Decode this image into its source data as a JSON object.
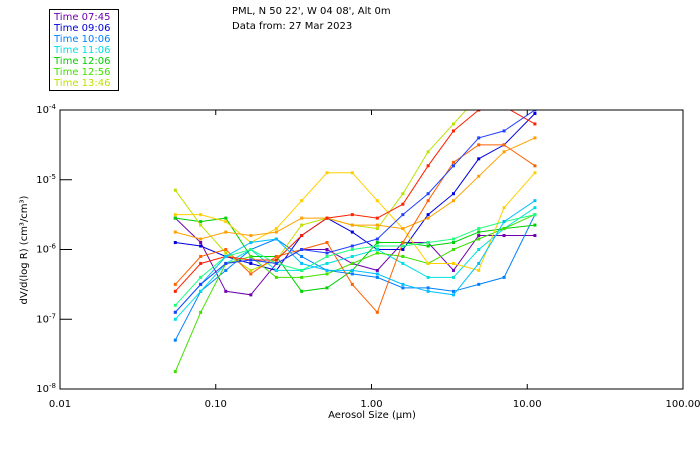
{
  "header": {
    "location": "PML, N 50 22', W 04 08', Alt 0m",
    "date": "Data from: 27 Mar 2023"
  },
  "legend": [
    {
      "label": "Time 07:45",
      "color": "#7000b0"
    },
    {
      "label": "Time 09:06",
      "color": "#0000e0"
    },
    {
      "label": "Time 10:06",
      "color": "#0080ff"
    },
    {
      "label": "Time 11:06",
      "color": "#00e0e0"
    },
    {
      "label": "Time 12:06",
      "color": "#00d000"
    },
    {
      "label": "Time 12:56",
      "color": "#40e000"
    },
    {
      "label": "Time 13:46",
      "color": "#c0e000"
    }
  ],
  "chart_data": {
    "type": "line",
    "xscale": "log",
    "yscale": "log",
    "xlabel": "Aerosol Size (μm)",
    "ylabel": "dV/d(log R) (cm³/cm³)",
    "xlim": [
      0.01,
      100
    ],
    "ylim": [
      1e-08,
      0.0001
    ],
    "x_ticks": [
      {
        "value": 0.01,
        "label": "0.01"
      },
      {
        "value": 0.1,
        "label": "0.10"
      },
      {
        "value": 1,
        "label": "1.00"
      },
      {
        "value": 10,
        "label": "10.00"
      },
      {
        "value": 100,
        "label": "100.00"
      }
    ],
    "y_ticks": [
      {
        "value": 0.0001,
        "base": "10",
        "exp": "-4"
      },
      {
        "value": 1e-05,
        "base": "10",
        "exp": "-5"
      },
      {
        "value": 1e-06,
        "base": "10",
        "exp": "-6"
      },
      {
        "value": 1e-07,
        "base": "10",
        "exp": "-7"
      },
      {
        "value": 1e-08,
        "base": "10",
        "exp": "-8"
      }
    ],
    "x": [
      0.055,
      0.08,
      0.116,
      0.168,
      0.245,
      0.356,
      0.518,
      0.753,
      1.09,
      1.59,
      2.31,
      3.36,
      4.88,
      7.1,
      11.2
    ],
    "series_note": "y values given as log10(dV/dlogR)",
    "series": [
      {
        "name": "Time 07:45",
        "color": "#7000b0",
        "log10_y": [
          -5.55,
          -5.9,
          -6.6,
          -6.65,
          -6.2,
          -6.0,
          -6.0,
          -6.2,
          -6.3,
          -5.9,
          -5.9,
          -6.3,
          -5.8,
          -5.8,
          -5.8
        ]
      },
      {
        "name": "Time 09:06",
        "color": "#0000e0",
        "log10_y": [
          -5.9,
          -5.95,
          -6.1,
          -6.2,
          -6.3,
          -5.8,
          -5.55,
          -5.75,
          -6.0,
          -6.0,
          -5.5,
          -5.2,
          -4.7,
          -4.5,
          -4.05
        ]
      },
      {
        "name": "Time 10:06",
        "color": "#0080ff",
        "log10_y": [
          -7.3,
          -6.6,
          -6.3,
          -6.0,
          -5.85,
          -6.1,
          -6.3,
          -6.35,
          -6.4,
          -6.55,
          -6.55,
          -6.6,
          -6.5,
          -6.4,
          -5.5
        ]
      },
      {
        "name": "Time 11:06",
        "color": "#00e0e0",
        "log10_y": [
          -7.0,
          -6.6,
          -6.2,
          -6.0,
          -6.3,
          -6.3,
          -6.2,
          -6.1,
          -6.0,
          -6.2,
          -6.4,
          -6.4,
          -6.0,
          -5.7,
          -5.4
        ]
      },
      {
        "name": "Time 12:06",
        "color": "#00d000",
        "log10_y": [
          -5.55,
          -5.6,
          -5.55,
          -6.1,
          -6.1,
          -6.6,
          -6.55,
          -6.3,
          -5.9,
          -5.9,
          -5.95,
          -5.9,
          -5.75,
          -5.7,
          -5.65
        ]
      },
      {
        "name": "Time 12:56",
        "color": "#40e000",
        "log10_y": [
          -7.75,
          -6.9,
          -6.2,
          -6.1,
          -6.4,
          -6.4,
          -6.35,
          -6.2,
          -6.05,
          -6.1,
          -6.2,
          -6.0,
          -5.85,
          -5.7,
          -5.5
        ]
      },
      {
        "name": "Time 13:46",
        "color": "#c0e000",
        "log10_y": [
          -5.15,
          -5.65,
          -6.05,
          -6.3,
          -6.15,
          -5.65,
          -5.55,
          -5.65,
          -5.7,
          -5.2,
          -4.6,
          -4.2,
          -3.8,
          -3.7,
          -3.6
        ]
      },
      {
        "name": "",
        "color": "#ffd000",
        "log10_y": [
          -5.5,
          -5.5,
          -5.6,
          -5.9,
          -5.7,
          -5.3,
          -4.9,
          -4.9,
          -5.3,
          -5.7,
          -6.2,
          -6.2,
          -6.3,
          -5.4,
          -4.9
        ]
      },
      {
        "name": "",
        "color": "#ffa000",
        "log10_y": [
          -5.75,
          -5.85,
          -5.75,
          -5.8,
          -5.75,
          -5.55,
          -5.55,
          -5.65,
          -5.65,
          -5.7,
          -5.55,
          -5.3,
          -4.95,
          -4.6,
          -4.4
        ]
      },
      {
        "name": "",
        "color": "#ff6000",
        "log10_y": [
          -6.5,
          -6.1,
          -6.0,
          -6.35,
          -6.1,
          -6.0,
          -5.9,
          -6.5,
          -6.9,
          -5.9,
          -5.3,
          -4.75,
          -4.5,
          -4.5,
          -4.8
        ]
      },
      {
        "name": "",
        "color": "#ff2000",
        "log10_y": [
          -6.6,
          -6.2,
          -6.1,
          -6.15,
          -6.15,
          -5.8,
          -5.55,
          -5.5,
          -5.55,
          -5.35,
          -4.8,
          -4.3,
          -4.0,
          -3.95,
          -4.2
        ]
      },
      {
        "name": "",
        "color": "#20ff80",
        "log10_y": [
          -6.8,
          -6.4,
          -6.1,
          -6.0,
          -6.2,
          -6.3,
          -6.1,
          -6.0,
          -5.95,
          -5.95,
          -5.9,
          -5.85,
          -5.7,
          -5.6,
          -5.5
        ]
      },
      {
        "name": "",
        "color": "#00c0ff",
        "log10_y": [
          -6.9,
          -6.5,
          -6.1,
          -5.9,
          -5.85,
          -6.2,
          -6.3,
          -6.3,
          -6.35,
          -6.5,
          -6.6,
          -6.65,
          -6.2,
          -5.6,
          -5.3
        ]
      },
      {
        "name": "",
        "color": "#2040ff",
        "log10_y": [
          -6.9,
          -6.5,
          -6.2,
          -6.15,
          -6.2,
          -6.0,
          -6.05,
          -5.95,
          -5.85,
          -5.5,
          -5.2,
          -4.8,
          -4.4,
          -4.3,
          -4.0
        ]
      }
    ]
  }
}
